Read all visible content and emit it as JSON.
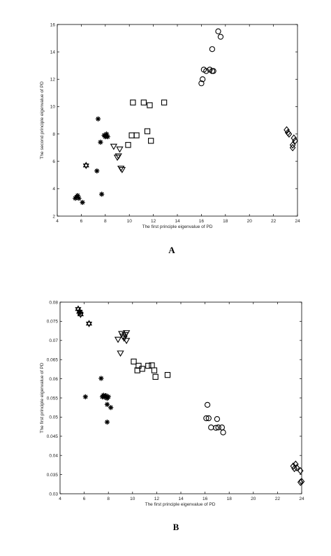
{
  "chart_data": [
    {
      "type": "scatter",
      "panel_label": "A",
      "xlabel": "The first principle eigenvalue of PD",
      "ylabel": "The second principle eigenvalue of PD",
      "xlim": [
        4,
        24
      ],
      "ylim": [
        2,
        16
      ],
      "xticks": [
        "4",
        "6",
        "8",
        "10",
        "12",
        "14",
        "16",
        "18",
        "20",
        "22",
        "24"
      ],
      "yticks": [
        "2",
        "4",
        "6",
        "8",
        "10",
        "12",
        "14",
        "16"
      ],
      "grid": false,
      "legend": "none",
      "series": [
        {
          "marker": "asterisk",
          "points": [
            [
              5.5,
              3.3
            ],
            [
              5.6,
              3.4
            ],
            [
              5.7,
              3.5
            ],
            [
              5.8,
              3.3
            ],
            [
              6.1,
              3.0
            ],
            [
              7.3,
              5.3
            ],
            [
              7.4,
              9.1
            ],
            [
              7.6,
              7.4
            ],
            [
              7.7,
              3.6
            ],
            [
              7.9,
              7.9
            ],
            [
              8.0,
              7.8
            ],
            [
              8.1,
              8.0
            ],
            [
              8.2,
              7.8
            ]
          ]
        },
        {
          "marker": "hexagram",
          "points": [
            [
              6.4,
              5.7
            ]
          ]
        },
        {
          "marker": "triangle-down",
          "points": [
            [
              8.7,
              7.1
            ],
            [
              9.0,
              6.3
            ],
            [
              9.2,
              6.9
            ],
            [
              9.3,
              5.5
            ],
            [
              9.4,
              5.4
            ],
            [
              9.1,
              6.4
            ]
          ]
        },
        {
          "marker": "square",
          "points": [
            [
              9.9,
              7.2
            ],
            [
              10.2,
              7.9
            ],
            [
              10.3,
              10.3
            ],
            [
              10.6,
              7.9
            ],
            [
              11.2,
              10.3
            ],
            [
              11.5,
              8.2
            ],
            [
              11.7,
              10.1
            ],
            [
              11.8,
              7.5
            ],
            [
              12.9,
              10.3
            ]
          ]
        },
        {
          "marker": "circle",
          "points": [
            [
              16.0,
              11.7
            ],
            [
              16.1,
              12.0
            ],
            [
              16.2,
              12.7
            ],
            [
              16.4,
              12.6
            ],
            [
              16.7,
              12.7
            ],
            [
              16.9,
              12.6
            ],
            [
              17.0,
              12.6
            ],
            [
              16.9,
              14.2
            ],
            [
              17.4,
              15.5
            ],
            [
              17.6,
              15.1
            ]
          ]
        },
        {
          "marker": "diamond",
          "points": [
            [
              23.1,
              8.3
            ],
            [
              23.2,
              8.1
            ],
            [
              23.3,
              8.0
            ],
            [
              23.6,
              7.2
            ],
            [
              23.7,
              7.7
            ],
            [
              23.8,
              7.5
            ],
            [
              23.6,
              7.0
            ]
          ]
        }
      ]
    },
    {
      "type": "scatter",
      "panel_label": "B",
      "xlabel": "The first principle eigenvalue of PD",
      "ylabel": "The first principle eigenvalue of PD",
      "xlim": [
        4,
        24
      ],
      "ylim": [
        0.03,
        0.08
      ],
      "xticks": [
        "4",
        "6",
        "8",
        "10",
        "12",
        "14",
        "16",
        "18",
        "20",
        "22",
        "24"
      ],
      "yticks": [
        "0.03",
        "0.035",
        "0.04",
        "0.045",
        "0.05",
        "0.055",
        "0.06",
        "0.065",
        "0.07",
        "0.075",
        "0.08"
      ],
      "grid": false,
      "legend": "none",
      "series": [
        {
          "marker": "hexagram",
          "points": [
            [
              5.5,
              0.0782
            ],
            [
              5.6,
              0.0775
            ],
            [
              5.7,
              0.0768
            ],
            [
              6.4,
              0.0744
            ]
          ]
        },
        {
          "marker": "asterisk",
          "points": [
            [
              5.6,
              0.0771
            ],
            [
              5.7,
              0.0774
            ],
            [
              6.1,
              0.0553
            ],
            [
              7.4,
              0.0601
            ],
            [
              7.5,
              0.0553
            ],
            [
              7.6,
              0.0557
            ],
            [
              7.7,
              0.0552
            ],
            [
              7.8,
              0.0556
            ],
            [
              7.9,
              0.0549
            ],
            [
              8.0,
              0.0553
            ],
            [
              7.9,
              0.0533
            ],
            [
              8.2,
              0.0525
            ],
            [
              7.9,
              0.0487
            ]
          ]
        },
        {
          "marker": "triangle-down",
          "points": [
            [
              8.8,
              0.0703
            ],
            [
              9.0,
              0.0667
            ],
            [
              9.1,
              0.0718
            ],
            [
              9.2,
              0.0711
            ],
            [
              9.3,
              0.0706
            ],
            [
              9.4,
              0.0715
            ],
            [
              9.5,
              0.07
            ],
            [
              9.5,
              0.072
            ]
          ]
        },
        {
          "marker": "square",
          "points": [
            [
              10.1,
              0.0645
            ],
            [
              10.4,
              0.0622
            ],
            [
              10.5,
              0.0634
            ],
            [
              10.8,
              0.0626
            ],
            [
              11.3,
              0.0634
            ],
            [
              11.6,
              0.0635
            ],
            [
              11.8,
              0.0622
            ],
            [
              11.9,
              0.0605
            ],
            [
              12.9,
              0.061
            ]
          ]
        },
        {
          "marker": "circle",
          "points": [
            [
              16.1,
              0.0497
            ],
            [
              16.2,
              0.0532
            ],
            [
              16.3,
              0.0497
            ],
            [
              16.5,
              0.0473
            ],
            [
              16.9,
              0.0472
            ],
            [
              17.0,
              0.0495
            ],
            [
              17.1,
              0.0473
            ],
            [
              17.4,
              0.0473
            ],
            [
              17.5,
              0.046
            ]
          ]
        },
        {
          "marker": "diamond",
          "points": [
            [
              23.3,
              0.0372
            ],
            [
              23.4,
              0.0366
            ],
            [
              23.5,
              0.0377
            ],
            [
              23.6,
              0.0368
            ],
            [
              23.9,
              0.036
            ],
            [
              24.0,
              0.0332
            ],
            [
              23.9,
              0.033
            ]
          ]
        }
      ]
    }
  ]
}
